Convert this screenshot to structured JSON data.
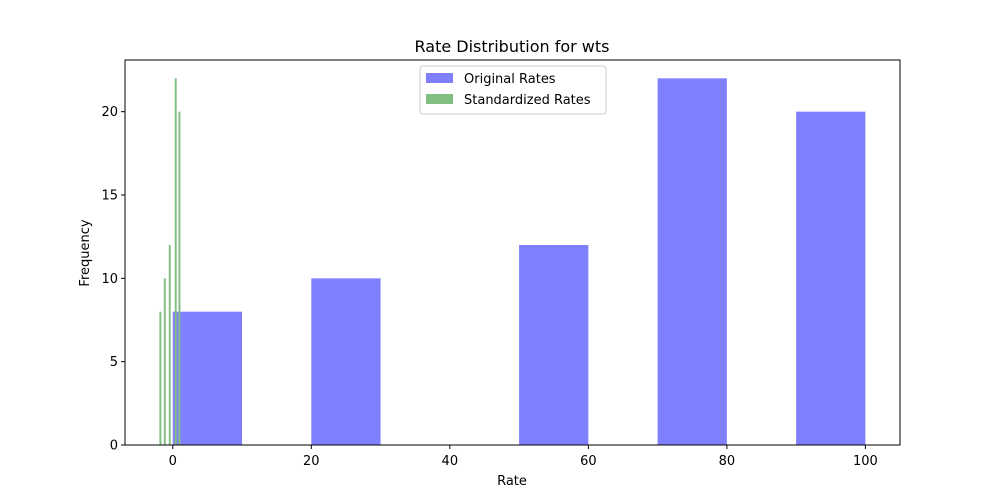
{
  "chart_data": {
    "type": "bar",
    "title": "Rate Distribution for wts",
    "xlabel": "Rate",
    "ylabel": "Frequency",
    "xlim": [
      -6.9,
      105.0
    ],
    "ylim": [
      0,
      23.1
    ],
    "xticks": [
      0,
      20,
      40,
      60,
      80,
      100
    ],
    "xtick_labels": [
      "0",
      "20",
      "40",
      "60",
      "80",
      "100"
    ],
    "yticks": [
      0,
      5,
      10,
      15,
      20
    ],
    "ytick_labels": [
      "0",
      "5",
      "10",
      "15",
      "20"
    ],
    "grid": false,
    "legend_position": "top-center",
    "series": [
      {
        "name": "Original Rates",
        "color": "#8080ff",
        "bins": [
          {
            "x0": 0,
            "x1": 10,
            "count": 8
          },
          {
            "x0": 20,
            "x1": 30,
            "count": 10
          },
          {
            "x0": 50,
            "x1": 60,
            "count": 12
          },
          {
            "x0": 70,
            "x1": 80,
            "count": 22
          },
          {
            "x0": 90,
            "x1": 100,
            "count": 20
          }
        ]
      },
      {
        "name": "Standardized Rates",
        "color": "#80bf80",
        "bins": [
          {
            "x0": -1.93,
            "x1": -1.65,
            "count": 8
          },
          {
            "x0": -1.3,
            "x1": -1.02,
            "count": 10
          },
          {
            "x0": -0.58,
            "x1": -0.3,
            "count": 12
          },
          {
            "x0": 0.28,
            "x1": 0.56,
            "count": 22
          },
          {
            "x0": 0.82,
            "x1": 1.1,
            "count": 20
          }
        ]
      }
    ]
  }
}
